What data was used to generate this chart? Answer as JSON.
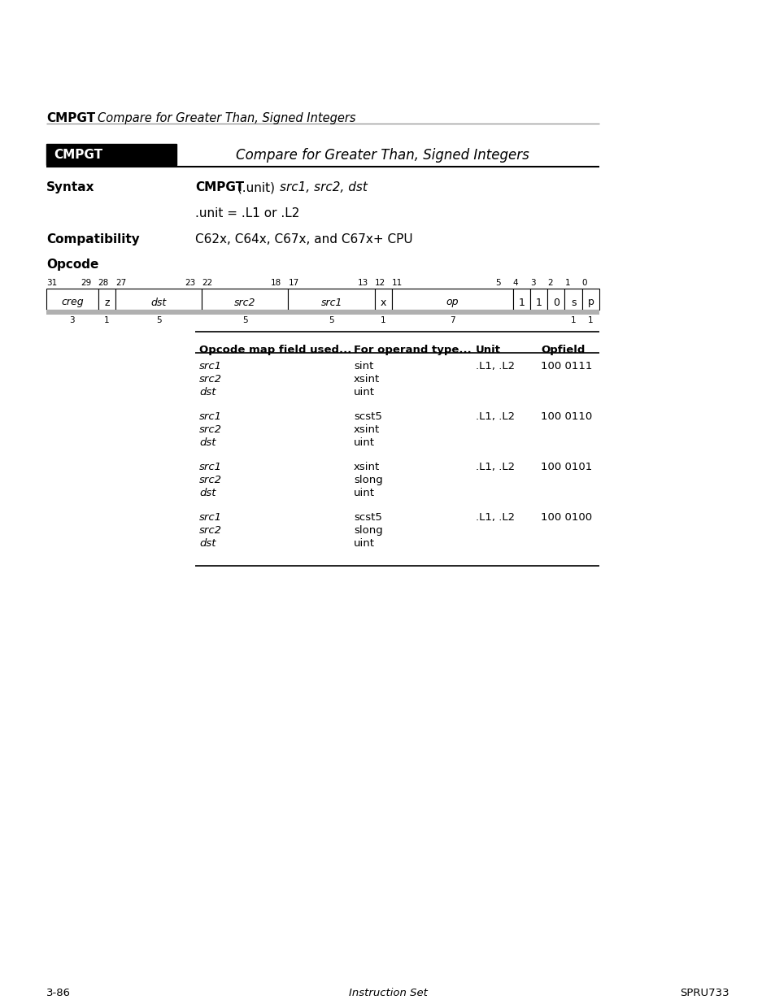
{
  "page_header_bold": "CMPGT",
  "page_header_italic": "Compare for Greater Than, Signed Integers",
  "section_title_bold": "CMPGT",
  "section_title_italic": "Compare for Greater Than, Signed Integers",
  "syntax_label": "Syntax",
  "syntax_line2": ".unit = .L1 or .L2",
  "compat_label": "Compatibility",
  "compat_text": "C62x, C64x, C67x, and C67x+ CPU",
  "opcode_label": "Opcode",
  "table_headers": [
    "Opcode map field used...",
    "For operand type...",
    "Unit",
    "Opfield"
  ],
  "table_rows": [
    {
      "col1": [
        "src1",
        "src2",
        "dst"
      ],
      "col2": [
        "sint",
        "xsint",
        "uint"
      ],
      "col3": ".L1, .L2",
      "col4": "100 0111"
    },
    {
      "col1": [
        "src1",
        "src2",
        "dst"
      ],
      "col2": [
        "scst5",
        "xsint",
        "uint"
      ],
      "col3": ".L1, .L2",
      "col4": "100 0110"
    },
    {
      "col1": [
        "src1",
        "src2",
        "dst"
      ],
      "col2": [
        "xsint",
        "slong",
        "uint"
      ],
      "col3": ".L1, .L2",
      "col4": "100 0101"
    },
    {
      "col1": [
        "src1",
        "src2",
        "dst"
      ],
      "col2": [
        "scst5",
        "slong",
        "uint"
      ],
      "col3": ".L1, .L2",
      "col4": "100 0100"
    }
  ],
  "bit_fields": [
    {
      "label": "creg",
      "italic": true,
      "hi": 31,
      "lo": 29
    },
    {
      "label": "z",
      "italic": false,
      "hi": 28,
      "lo": 28
    },
    {
      "label": "dst",
      "italic": true,
      "hi": 27,
      "lo": 23
    },
    {
      "label": "src2",
      "italic": true,
      "hi": 22,
      "lo": 18
    },
    {
      "label": "src1",
      "italic": true,
      "hi": 17,
      "lo": 13
    },
    {
      "label": "x",
      "italic": false,
      "hi": 12,
      "lo": 12
    },
    {
      "label": "op",
      "italic": true,
      "hi": 11,
      "lo": 5
    },
    {
      "label": "1",
      "italic": false,
      "hi": 4,
      "lo": 4
    },
    {
      "label": "1",
      "italic": false,
      "hi": 3,
      "lo": 3
    },
    {
      "label": "0",
      "italic": false,
      "hi": 2,
      "lo": 2
    },
    {
      "label": "s",
      "italic": false,
      "hi": 1,
      "lo": 1
    },
    {
      "label": "p",
      "italic": false,
      "hi": 0,
      "lo": 0
    }
  ],
  "footer_left": "3-86",
  "footer_center": "Instruction Set",
  "footer_right": "SPRU733",
  "bg_color": "#ffffff",
  "gray_line": "#999999",
  "gray_shadow": "#b0b0b0"
}
